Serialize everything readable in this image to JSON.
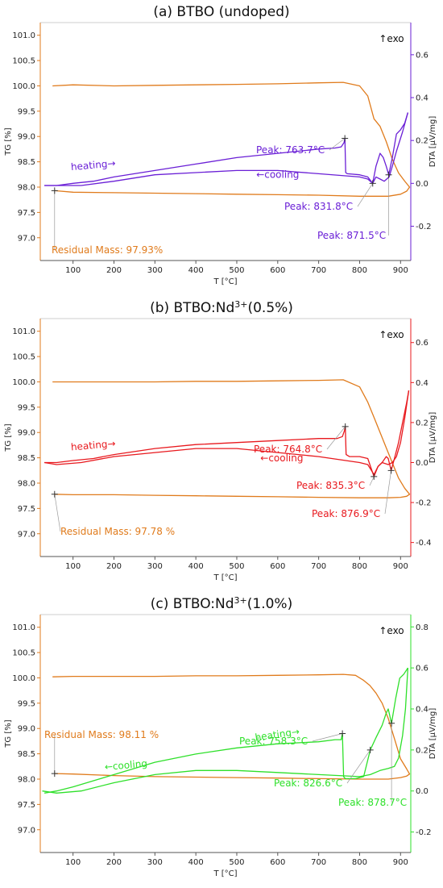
{
  "colors": {
    "tg": "#E07B1C",
    "panel_a_dta": "#6A1FD6",
    "panel_b_dta": "#E8191E",
    "panel_c_dta": "#2EE02A",
    "text": "#222222"
  },
  "chart_data": [
    {
      "type": "line",
      "title_prefix": "(a) BTBO (undoped)",
      "title_sup": "",
      "title_suffix": "",
      "xlabel": "T [°C]",
      "ylabel_left": "TG [%]",
      "ylabel_right": "DTA  [µV/mg]",
      "exo_label": "↑exo",
      "xlim": [
        20,
        925
      ],
      "x_ticks": [
        100,
        200,
        300,
        400,
        500,
        600,
        700,
        800,
        900
      ],
      "ylim_left": [
        96.55,
        101.25
      ],
      "y_ticks_left": [
        97.0,
        97.5,
        98.0,
        98.5,
        99.0,
        99.5,
        100.0,
        100.5,
        101.0
      ],
      "ylim_right": [
        -0.36,
        0.75
      ],
      "y_ticks_right": [
        -0.2,
        0.0,
        0.2,
        0.4,
        0.6
      ],
      "series": [
        {
          "name": "TG",
          "axis": "left",
          "color_key": "tg",
          "x": [
            50,
            100,
            200,
            300,
            400,
            500,
            600,
            700,
            760,
            800,
            820,
            835,
            850,
            865,
            880,
            895,
            910,
            922,
            915,
            900,
            870,
            800,
            700,
            600,
            500,
            400,
            300,
            200,
            100,
            55
          ],
          "y": [
            100.0,
            100.02,
            100.0,
            100.01,
            100.02,
            100.03,
            100.04,
            100.06,
            100.07,
            100.0,
            99.8,
            99.35,
            99.2,
            98.9,
            98.55,
            98.28,
            98.12,
            98.0,
            97.92,
            97.86,
            97.82,
            97.82,
            97.84,
            97.85,
            97.86,
            97.87,
            97.88,
            97.89,
            97.9,
            97.93
          ]
        },
        {
          "name": "heating→",
          "axis": "right",
          "color_key": "panel_a_dta",
          "x": [
            30,
            60,
            100,
            150,
            200,
            300,
            400,
            500,
            600,
            700,
            740,
            755,
            762,
            764,
            766,
            770,
            800,
            820,
            832,
            840,
            850,
            858,
            865,
            871,
            880,
            890,
            900,
            910,
            918
          ],
          "y": [
            -0.01,
            -0.01,
            0.0,
            0.01,
            0.03,
            0.06,
            0.09,
            0.12,
            0.14,
            0.16,
            0.165,
            0.17,
            0.19,
            0.21,
            0.05,
            0.045,
            0.04,
            0.03,
            0.0,
            0.08,
            0.14,
            0.12,
            0.08,
            0.04,
            0.12,
            0.23,
            0.25,
            0.28,
            0.33
          ]
        },
        {
          "name": "←cooling",
          "axis": "right",
          "color_key": "panel_a_dta",
          "x": [
            918,
            905,
            890,
            880,
            872,
            860,
            850,
            840,
            832,
            820,
            800,
            700,
            600,
            500,
            400,
            300,
            200,
            120,
            60,
            30
          ],
          "y": [
            0.33,
            0.24,
            0.15,
            0.08,
            0.03,
            0.01,
            0.02,
            0.03,
            0.0,
            0.02,
            0.03,
            0.045,
            0.06,
            0.06,
            0.05,
            0.04,
            0.01,
            -0.01,
            -0.01,
            -0.01
          ]
        }
      ],
      "annotations": [
        {
          "text": "Peak: 763.7°C",
          "target_x": 764,
          "target_y": 0.21,
          "axis": "right",
          "color_key": "panel_a_dta"
        },
        {
          "text": "Peak: 831.8°C",
          "target_x": 832,
          "target_y": 0.0,
          "axis": "right",
          "color_key": "panel_a_dta"
        },
        {
          "text": "Peak: 871.5°C",
          "target_x": 871,
          "target_y": 0.04,
          "axis": "right",
          "color_key": "panel_a_dta"
        },
        {
          "text": "Residual Mass: 97.93%",
          "target_x": 55,
          "target_y": 97.93,
          "axis": "left",
          "color_key": "tg"
        }
      ],
      "curve_labels": [
        {
          "text": "heating→",
          "x": 150,
          "y": 0.07,
          "axis": "right",
          "color_key": "panel_a_dta",
          "rotate": -5
        },
        {
          "text": "←cooling",
          "x": 600,
          "y": 0.025,
          "axis": "right",
          "color_key": "panel_a_dta",
          "rotate": 0
        }
      ]
    },
    {
      "type": "line",
      "title_prefix": "(b) BTBO:Nd",
      "title_sup": "3+",
      "title_suffix": "(0.5%)",
      "xlabel": "T [°C]",
      "ylabel_left": "TG [%]",
      "ylabel_right": "DTA  [µV/mg]",
      "exo_label": "↑exo",
      "xlim": [
        20,
        925
      ],
      "x_ticks": [
        100,
        200,
        300,
        400,
        500,
        600,
        700,
        800,
        900
      ],
      "ylim_left": [
        96.55,
        101.25
      ],
      "y_ticks_left": [
        97.0,
        97.5,
        98.0,
        98.5,
        99.0,
        99.5,
        100.0,
        100.5,
        101.0
      ],
      "ylim_right": [
        -0.47,
        0.72
      ],
      "y_ticks_right": [
        -0.4,
        -0.2,
        0.0,
        0.2,
        0.4,
        0.6
      ],
      "series": [
        {
          "name": "TG",
          "axis": "left",
          "color_key": "tg",
          "x": [
            50,
            100,
            200,
            300,
            400,
            500,
            600,
            700,
            760,
            800,
            820,
            835,
            850,
            865,
            880,
            895,
            910,
            922,
            915,
            900,
            870,
            800,
            700,
            600,
            500,
            400,
            300,
            200,
            100,
            55
          ],
          "y": [
            100.0,
            100.0,
            100.0,
            100.0,
            100.01,
            100.01,
            100.02,
            100.03,
            100.04,
            99.9,
            99.6,
            99.3,
            99.0,
            98.7,
            98.4,
            98.1,
            97.9,
            97.78,
            97.74,
            97.72,
            97.71,
            97.71,
            97.72,
            97.73,
            97.74,
            97.75,
            97.76,
            97.77,
            97.77,
            97.78
          ]
        },
        {
          "name": "heating→",
          "axis": "right",
          "color_key": "panel_b_dta",
          "x": [
            30,
            60,
            100,
            150,
            200,
            300,
            400,
            500,
            600,
            700,
            745,
            758,
            763,
            765,
            767,
            775,
            800,
            820,
            835,
            845,
            855,
            865,
            870,
            877,
            885,
            895,
            905,
            915,
            920
          ],
          "y": [
            0.0,
            0.0,
            0.01,
            0.02,
            0.04,
            0.07,
            0.09,
            0.1,
            0.11,
            0.12,
            0.12,
            0.13,
            0.16,
            0.18,
            0.04,
            0.03,
            0.03,
            0.02,
            -0.07,
            -0.02,
            0.0,
            0.03,
            0.02,
            -0.04,
            0.02,
            0.1,
            0.2,
            0.3,
            0.36
          ]
        },
        {
          "name": "←cooling",
          "axis": "right",
          "color_key": "panel_b_dta",
          "x": [
            920,
            910,
            900,
            890,
            880,
            870,
            855,
            845,
            835,
            820,
            800,
            700,
            600,
            500,
            400,
            300,
            200,
            120,
            60,
            30
          ],
          "y": [
            0.36,
            0.22,
            0.1,
            0.03,
            0.0,
            -0.01,
            0.0,
            -0.02,
            -0.06,
            -0.01,
            0.0,
            0.03,
            0.05,
            0.07,
            0.07,
            0.05,
            0.03,
            0.0,
            -0.01,
            0.0
          ]
        }
      ],
      "annotations": [
        {
          "text": "Peak: 764.8°C",
          "target_x": 765,
          "target_y": 0.18,
          "axis": "right",
          "color_key": "panel_b_dta"
        },
        {
          "text": "Peak: 835.3°C",
          "target_x": 835,
          "target_y": -0.07,
          "axis": "right",
          "color_key": "panel_b_dta"
        },
        {
          "text": "Peak: 876.9°C",
          "target_x": 877,
          "target_y": -0.04,
          "axis": "right",
          "color_key": "panel_b_dta"
        },
        {
          "text": "Residual Mass: 97.78 %",
          "target_x": 55,
          "target_y": 97.78,
          "axis": "left",
          "color_key": "tg"
        }
      ],
      "curve_labels": [
        {
          "text": "heating→",
          "x": 150,
          "y": 0.07,
          "axis": "right",
          "color_key": "panel_b_dta",
          "rotate": -5
        },
        {
          "text": "←cooling",
          "x": 610,
          "y": 0.005,
          "axis": "right",
          "color_key": "panel_b_dta",
          "rotate": 0
        }
      ]
    },
    {
      "type": "line",
      "title_prefix": "(c) BTBO:Nd",
      "title_sup": "3+",
      "title_suffix": "(1.0%)",
      "xlabel": "T [°C]",
      "ylabel_left": "TG [%]",
      "ylabel_right": "DTA  [µV/mg]",
      "exo_label": "↑exo",
      "xlim": [
        20,
        925
      ],
      "x_ticks": [
        100,
        200,
        300,
        400,
        500,
        600,
        700,
        800,
        900
      ],
      "ylim_left": [
        96.55,
        101.25
      ],
      "y_ticks_left": [
        97.0,
        97.5,
        98.0,
        98.5,
        99.0,
        99.5,
        100.0,
        100.5,
        101.0
      ],
      "ylim_right": [
        -0.3,
        0.86
      ],
      "y_ticks_right": [
        -0.2,
        0.0,
        0.2,
        0.4,
        0.6,
        0.8
      ],
      "series": [
        {
          "name": "TG",
          "axis": "left",
          "color_key": "tg",
          "x": [
            50,
            100,
            200,
            300,
            400,
            500,
            600,
            700,
            760,
            790,
            810,
            825,
            840,
            855,
            870,
            885,
            900,
            915,
            922,
            915,
            900,
            870,
            800,
            700,
            600,
            500,
            400,
            300,
            200,
            100,
            55
          ],
          "y": [
            100.02,
            100.03,
            100.03,
            100.03,
            100.04,
            100.04,
            100.05,
            100.06,
            100.07,
            100.05,
            99.95,
            99.85,
            99.7,
            99.5,
            99.2,
            98.8,
            98.4,
            98.2,
            98.1,
            98.06,
            98.03,
            98.0,
            98.0,
            98.01,
            98.02,
            98.03,
            98.04,
            98.05,
            98.07,
            98.1,
            98.11
          ]
        },
        {
          "name": "heating→",
          "axis": "right",
          "color_key": "panel_c_dta",
          "x": [
            30,
            60,
            100,
            150,
            200,
            250,
            300,
            400,
            500,
            600,
            700,
            740,
            755,
            758,
            761,
            765,
            790,
            810,
            826,
            840,
            855,
            865,
            870,
            878,
            888,
            898,
            908,
            918
          ],
          "y": [
            -0.01,
            0.0,
            0.02,
            0.05,
            0.08,
            0.11,
            0.14,
            0.18,
            0.21,
            0.23,
            0.24,
            0.25,
            0.25,
            0.28,
            0.07,
            0.06,
            0.06,
            0.07,
            0.2,
            0.26,
            0.32,
            0.38,
            0.4,
            0.33,
            0.45,
            0.55,
            0.57,
            0.6
          ]
        },
        {
          "name": "←cooling",
          "axis": "right",
          "color_key": "panel_c_dta",
          "x": [
            918,
            912,
            905,
            895,
            885,
            870,
            850,
            826,
            800,
            700,
            600,
            500,
            400,
            300,
            200,
            120,
            60,
            25
          ],
          "y": [
            0.6,
            0.4,
            0.27,
            0.16,
            0.12,
            0.11,
            0.1,
            0.08,
            0.07,
            0.08,
            0.09,
            0.1,
            0.1,
            0.08,
            0.04,
            0.0,
            -0.01,
            0.0
          ]
        }
      ],
      "annotations": [
        {
          "text": "Peak: 758.3°C",
          "target_x": 758,
          "target_y": 0.28,
          "axis": "right",
          "color_key": "panel_c_dta"
        },
        {
          "text": "Peak: 826.6°C",
          "target_x": 826,
          "target_y": 0.2,
          "axis": "right",
          "color_key": "panel_c_dta"
        },
        {
          "text": "Peak: 878.7°C",
          "target_x": 878,
          "target_y": 0.33,
          "axis": "right",
          "color_key": "panel_c_dta"
        },
        {
          "text": "Residual Mass: 98.11 %",
          "target_x": 55,
          "target_y": 98.11,
          "axis": "left",
          "color_key": "tg"
        }
      ],
      "curve_labels": [
        {
          "text": "heating→",
          "x": 600,
          "y": 0.26,
          "axis": "right",
          "color_key": "panel_c_dta",
          "rotate": -8
        },
        {
          "text": "←cooling",
          "x": 230,
          "y": 0.11,
          "axis": "right",
          "color_key": "panel_c_dta",
          "rotate": -5
        }
      ]
    }
  ]
}
